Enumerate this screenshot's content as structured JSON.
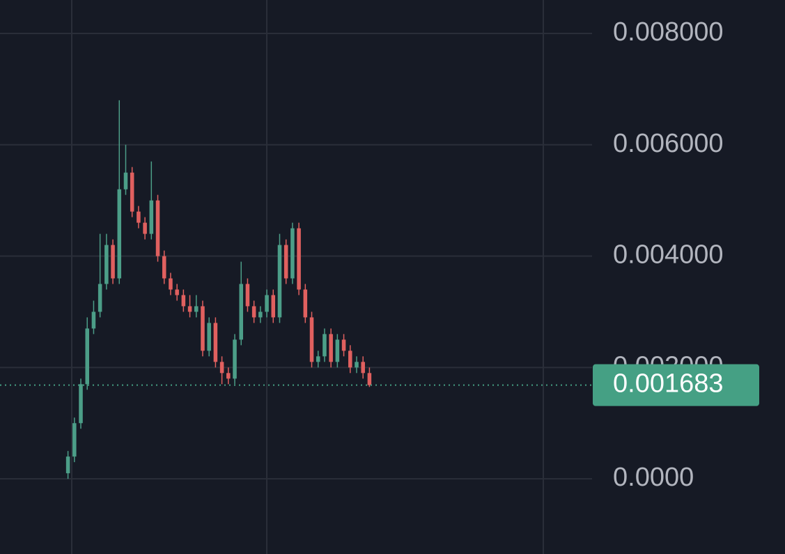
{
  "chart_data": {
    "type": "candlestick",
    "categories": [
      null,
      null,
      null,
      null,
      null,
      null,
      null,
      null,
      null,
      null,
      null,
      null,
      null,
      null,
      null,
      null,
      null,
      null,
      null,
      null,
      null,
      null,
      null,
      null,
      null,
      null,
      null,
      null,
      null,
      null,
      null,
      null,
      null,
      null,
      null,
      null,
      null,
      null,
      null,
      null,
      null,
      null,
      null,
      null,
      null,
      null,
      null,
      null
    ],
    "open": [
      0.0001,
      0.0004,
      0.001,
      0.0017,
      0.0027,
      0.003,
      0.0035,
      0.0042,
      0.0036,
      0.0052,
      0.0055,
      0.0048,
      0.0046,
      0.0044,
      0.005,
      0.004,
      0.0036,
      0.0034,
      0.0033,
      0.0031,
      0.003,
      0.0031,
      0.0023,
      0.0028,
      0.0021,
      0.0019,
      0.0018,
      0.0025,
      0.0035,
      0.0031,
      0.0029,
      0.003,
      0.0033,
      0.0029,
      0.0042,
      0.0036,
      0.0045,
      0.0034,
      0.0029,
      0.0021,
      0.0022,
      0.0026,
      0.0021,
      0.0025,
      0.0023,
      0.002,
      0.0021,
      0.0019
    ],
    "high": [
      0.0005,
      0.0011,
      0.0018,
      0.0029,
      0.0032,
      0.0044,
      0.0044,
      0.0043,
      0.0068,
      0.006,
      0.0056,
      0.0049,
      0.0047,
      0.0057,
      0.0051,
      0.0041,
      0.0037,
      0.0035,
      0.0034,
      0.0033,
      0.0033,
      0.0032,
      0.0029,
      0.0029,
      0.0022,
      0.002,
      0.0026,
      0.0039,
      0.0036,
      0.0032,
      0.0031,
      0.0034,
      0.0034,
      0.0044,
      0.0043,
      0.0046,
      0.0046,
      0.0035,
      0.003,
      0.0023,
      0.0027,
      0.0027,
      0.0026,
      0.0026,
      0.0024,
      0.0022,
      0.0022,
      0.002
    ],
    "low": [
      0.0,
      0.0003,
      0.0009,
      0.0016,
      0.0026,
      0.0029,
      0.0034,
      0.0035,
      0.0035,
      0.0051,
      0.0047,
      0.0045,
      0.0043,
      0.0043,
      0.0039,
      0.0035,
      0.0033,
      0.0032,
      0.003,
      0.0029,
      0.0029,
      0.0022,
      0.0022,
      0.002,
      0.0017,
      0.0017,
      0.0017,
      0.0024,
      0.003,
      0.0028,
      0.0028,
      0.0029,
      0.0028,
      0.0028,
      0.0035,
      0.0035,
      0.0033,
      0.0028,
      0.002,
      0.002,
      0.0021,
      0.002,
      0.002,
      0.0022,
      0.0019,
      0.0019,
      0.0018,
      0.00165
    ],
    "close": [
      0.0004,
      0.001,
      0.0017,
      0.0027,
      0.003,
      0.0035,
      0.0042,
      0.0036,
      0.0052,
      0.0055,
      0.0048,
      0.0046,
      0.0044,
      0.005,
      0.004,
      0.0036,
      0.0034,
      0.0033,
      0.0031,
      0.003,
      0.0031,
      0.0023,
      0.0028,
      0.0021,
      0.0019,
      0.0018,
      0.0025,
      0.0035,
      0.0031,
      0.0029,
      0.003,
      0.0033,
      0.0029,
      0.0042,
      0.0036,
      0.0045,
      0.0034,
      0.0029,
      0.0021,
      0.0022,
      0.0026,
      0.0021,
      0.0025,
      0.0023,
      0.002,
      0.0021,
      0.0019,
      0.001683
    ],
    "up_color": "#4c9e88",
    "down_color": "#e0605f",
    "ylim": [
      -0.00135,
      0.0086
    ],
    "yticks": [
      {
        "value": 0.008,
        "label": "0.008000"
      },
      {
        "value": 0.006,
        "label": "0.006000"
      },
      {
        "value": 0.004,
        "label": "0.004000"
      },
      {
        "value": 0.002,
        "label": "0.002000"
      },
      {
        "value": 0,
        "label": "0.0000"
      }
    ],
    "grid": true,
    "last_price": 0.001683,
    "last_price_color": "#45a084"
  }
}
